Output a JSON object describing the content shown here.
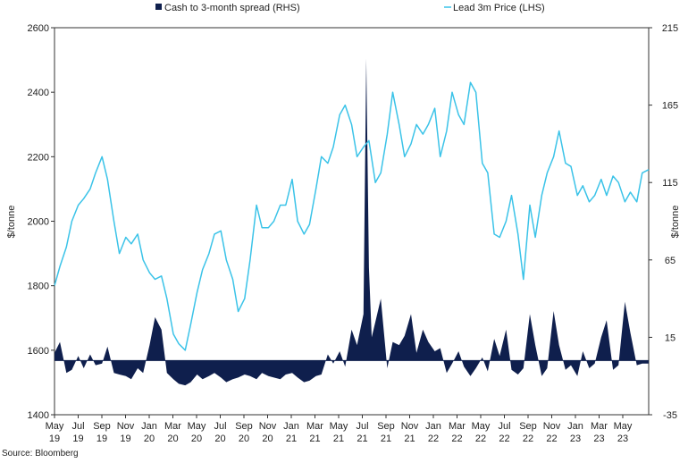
{
  "chart_data": {
    "type": "line",
    "source": "Source: Bloomberg",
    "legend_position": "top",
    "grid": false,
    "x_ticks": [
      {
        "top": "May",
        "bottom": "19"
      },
      {
        "top": "Jul",
        "bottom": "19"
      },
      {
        "top": "Sep",
        "bottom": "19"
      },
      {
        "top": "Nov",
        "bottom": "19"
      },
      {
        "top": "Jan",
        "bottom": "20"
      },
      {
        "top": "Mar",
        "bottom": "20"
      },
      {
        "top": "May",
        "bottom": "20"
      },
      {
        "top": "Jul",
        "bottom": "20"
      },
      {
        "top": "Sep",
        "bottom": "20"
      },
      {
        "top": "Nov",
        "bottom": "20"
      },
      {
        "top": "Jan",
        "bottom": "21"
      },
      {
        "top": "Mar",
        "bottom": "21"
      },
      {
        "top": "May",
        "bottom": "21"
      },
      {
        "top": "Jul",
        "bottom": "21"
      },
      {
        "top": "Sep",
        "bottom": "21"
      },
      {
        "top": "Nov",
        "bottom": "21"
      },
      {
        "top": "Jan",
        "bottom": "22"
      },
      {
        "top": "Mar",
        "bottom": "22"
      },
      {
        "top": "May",
        "bottom": "22"
      },
      {
        "top": "Jul",
        "bottom": "22"
      },
      {
        "top": "Sep",
        "bottom": "22"
      },
      {
        "top": "Nov",
        "bottom": "22"
      },
      {
        "top": "Jan",
        "bottom": "23"
      },
      {
        "top": "Mar",
        "bottom": "23"
      },
      {
        "top": "May",
        "bottom": "23"
      }
    ],
    "x_range": [
      "2019-05",
      "2023-07"
    ],
    "y_left": {
      "label": "$/tonne",
      "min": 1400,
      "max": 2600,
      "ticks": [
        "1400",
        "1600",
        "1800",
        "2000",
        "2200",
        "2400",
        "2600"
      ]
    },
    "y_right": {
      "label": "$/tonne",
      "min": -35,
      "max": 215,
      "ticks": [
        "-35",
        "15",
        "65",
        "115",
        "165",
        "215"
      ]
    },
    "series": [
      {
        "name": "Cash to 3-month spread (RHS)",
        "kind": "area",
        "axis": "right",
        "color": "#0f1f4d",
        "x": [
          "2019-05",
          "2019-05-15",
          "2019-06",
          "2019-06-15",
          "2019-07",
          "2019-07-15",
          "2019-08",
          "2019-08-15",
          "2019-09",
          "2019-09-15",
          "2019-10",
          "2019-10-15",
          "2019-11",
          "2019-11-15",
          "2019-12",
          "2019-12-15",
          "2020-01",
          "2020-01-15",
          "2020-02",
          "2020-02-15",
          "2020-03",
          "2020-03-15",
          "2020-04",
          "2020-04-15",
          "2020-05",
          "2020-05-15",
          "2020-06",
          "2020-06-15",
          "2020-07",
          "2020-07-15",
          "2020-08",
          "2020-08-15",
          "2020-09",
          "2020-09-15",
          "2020-10",
          "2020-10-15",
          "2020-11",
          "2020-11-15",
          "2020-12",
          "2020-12-15",
          "2021-01",
          "2021-01-15",
          "2021-02",
          "2021-02-15",
          "2021-03",
          "2021-03-15",
          "2021-04",
          "2021-04-15",
          "2021-05",
          "2021-05-15",
          "2021-06",
          "2021-06-15",
          "2021-07",
          "2021-07-08",
          "2021-07-15",
          "2021-07-22",
          "2021-08",
          "2021-08-15",
          "2021-09",
          "2021-09-15",
          "2021-10",
          "2021-10-15",
          "2021-11",
          "2021-11-15",
          "2021-12",
          "2021-12-15",
          "2022-01",
          "2022-01-15",
          "2022-02",
          "2022-02-15",
          "2022-03",
          "2022-03-15",
          "2022-04",
          "2022-04-15",
          "2022-05",
          "2022-05-15",
          "2022-06",
          "2022-06-15",
          "2022-07",
          "2022-07-15",
          "2022-08",
          "2022-08-15",
          "2022-09",
          "2022-09-15",
          "2022-10",
          "2022-10-15",
          "2022-11",
          "2022-11-15",
          "2022-12",
          "2022-12-15",
          "2023-01",
          "2023-01-15",
          "2023-02",
          "2023-02-15",
          "2023-03",
          "2023-03-15",
          "2023-04",
          "2023-04-15",
          "2023-05",
          "2023-05-15",
          "2023-06",
          "2023-06-15",
          "2023-07"
        ],
        "values": [
          5,
          12,
          -8,
          -6,
          3,
          -5,
          4,
          -3,
          -2,
          9,
          -8,
          -9,
          -10,
          -12,
          -5,
          -8,
          10,
          28,
          20,
          -8,
          -12,
          -15,
          -16,
          -14,
          -9,
          -12,
          -10,
          -8,
          -11,
          -14,
          -12,
          -11,
          -9,
          -10,
          -12,
          -8,
          -10,
          -11,
          -12,
          -9,
          -8,
          -11,
          -14,
          -13,
          -10,
          -9,
          4,
          -2,
          6,
          -4,
          20,
          10,
          30,
          195,
          60,
          15,
          25,
          40,
          -5,
          12,
          10,
          16,
          30,
          5,
          20,
          12,
          6,
          8,
          -8,
          -2,
          6,
          -4,
          -10,
          -5,
          2,
          -7,
          14,
          3,
          20,
          -6,
          -9,
          -5,
          30,
          10,
          -10,
          -5,
          32,
          10,
          -6,
          -3,
          -10,
          6,
          -5,
          -2,
          15,
          26,
          -6,
          -3,
          38,
          18,
          -3,
          -2,
          -2
        ]
      },
      {
        "name": "Lead 3m Price (LHS)",
        "kind": "line",
        "axis": "left",
        "color": "#3bc3e8",
        "x": [
          "2019-05",
          "2019-05-15",
          "2019-06",
          "2019-06-15",
          "2019-07",
          "2019-07-15",
          "2019-08",
          "2019-08-15",
          "2019-09",
          "2019-09-15",
          "2019-10",
          "2019-10-15",
          "2019-11",
          "2019-11-15",
          "2019-12",
          "2019-12-15",
          "2020-01",
          "2020-01-15",
          "2020-02",
          "2020-02-15",
          "2020-03",
          "2020-03-15",
          "2020-04",
          "2020-04-15",
          "2020-05",
          "2020-05-15",
          "2020-06",
          "2020-06-15",
          "2020-07",
          "2020-07-15",
          "2020-08",
          "2020-08-15",
          "2020-09",
          "2020-09-15",
          "2020-10",
          "2020-10-15",
          "2020-11",
          "2020-11-15",
          "2020-12",
          "2020-12-15",
          "2021-01",
          "2021-01-15",
          "2021-02",
          "2021-02-15",
          "2021-03",
          "2021-03-15",
          "2021-04",
          "2021-04-15",
          "2021-05",
          "2021-05-15",
          "2021-06",
          "2021-06-15",
          "2021-07",
          "2021-07-15",
          "2021-08",
          "2021-08-15",
          "2021-09",
          "2021-09-15",
          "2021-10",
          "2021-10-15",
          "2021-11",
          "2021-11-15",
          "2021-12",
          "2021-12-15",
          "2022-01",
          "2022-01-15",
          "2022-02",
          "2022-02-15",
          "2022-03",
          "2022-03-15",
          "2022-04",
          "2022-04-15",
          "2022-05",
          "2022-05-15",
          "2022-06",
          "2022-06-15",
          "2022-07",
          "2022-07-15",
          "2022-08",
          "2022-08-15",
          "2022-09",
          "2022-09-15",
          "2022-10",
          "2022-10-15",
          "2022-11",
          "2022-11-15",
          "2022-12",
          "2022-12-15",
          "2023-01",
          "2023-01-15",
          "2023-02",
          "2023-02-15",
          "2023-03",
          "2023-03-15",
          "2023-04",
          "2023-04-15",
          "2023-05",
          "2023-05-15",
          "2023-06",
          "2023-06-15",
          "2023-07"
        ],
        "values": [
          1800,
          1860,
          1920,
          2000,
          2050,
          2070,
          2100,
          2150,
          2200,
          2130,
          2000,
          1900,
          1950,
          1930,
          1960,
          1880,
          1840,
          1820,
          1830,
          1760,
          1650,
          1620,
          1600,
          1680,
          1780,
          1850,
          1900,
          1960,
          1970,
          1880,
          1820,
          1720,
          1760,
          1880,
          2050,
          1980,
          1980,
          2000,
          2050,
          2050,
          2130,
          2000,
          1960,
          1990,
          2100,
          2200,
          2180,
          2230,
          2330,
          2360,
          2300,
          2200,
          2230,
          2250,
          2120,
          2150,
          2270,
          2400,
          2300,
          2200,
          2240,
          2300,
          2270,
          2300,
          2350,
          2200,
          2280,
          2400,
          2330,
          2300,
          2430,
          2400,
          2180,
          2150,
          1960,
          1950,
          2000,
          2080,
          1960,
          1820,
          2050,
          1950,
          2080,
          2150,
          2200,
          2280,
          2180,
          2170,
          2080,
          2110,
          2060,
          2080,
          2130,
          2080,
          2140,
          2120,
          2060,
          2090,
          2060,
          2150,
          2160
        ]
      }
    ]
  }
}
